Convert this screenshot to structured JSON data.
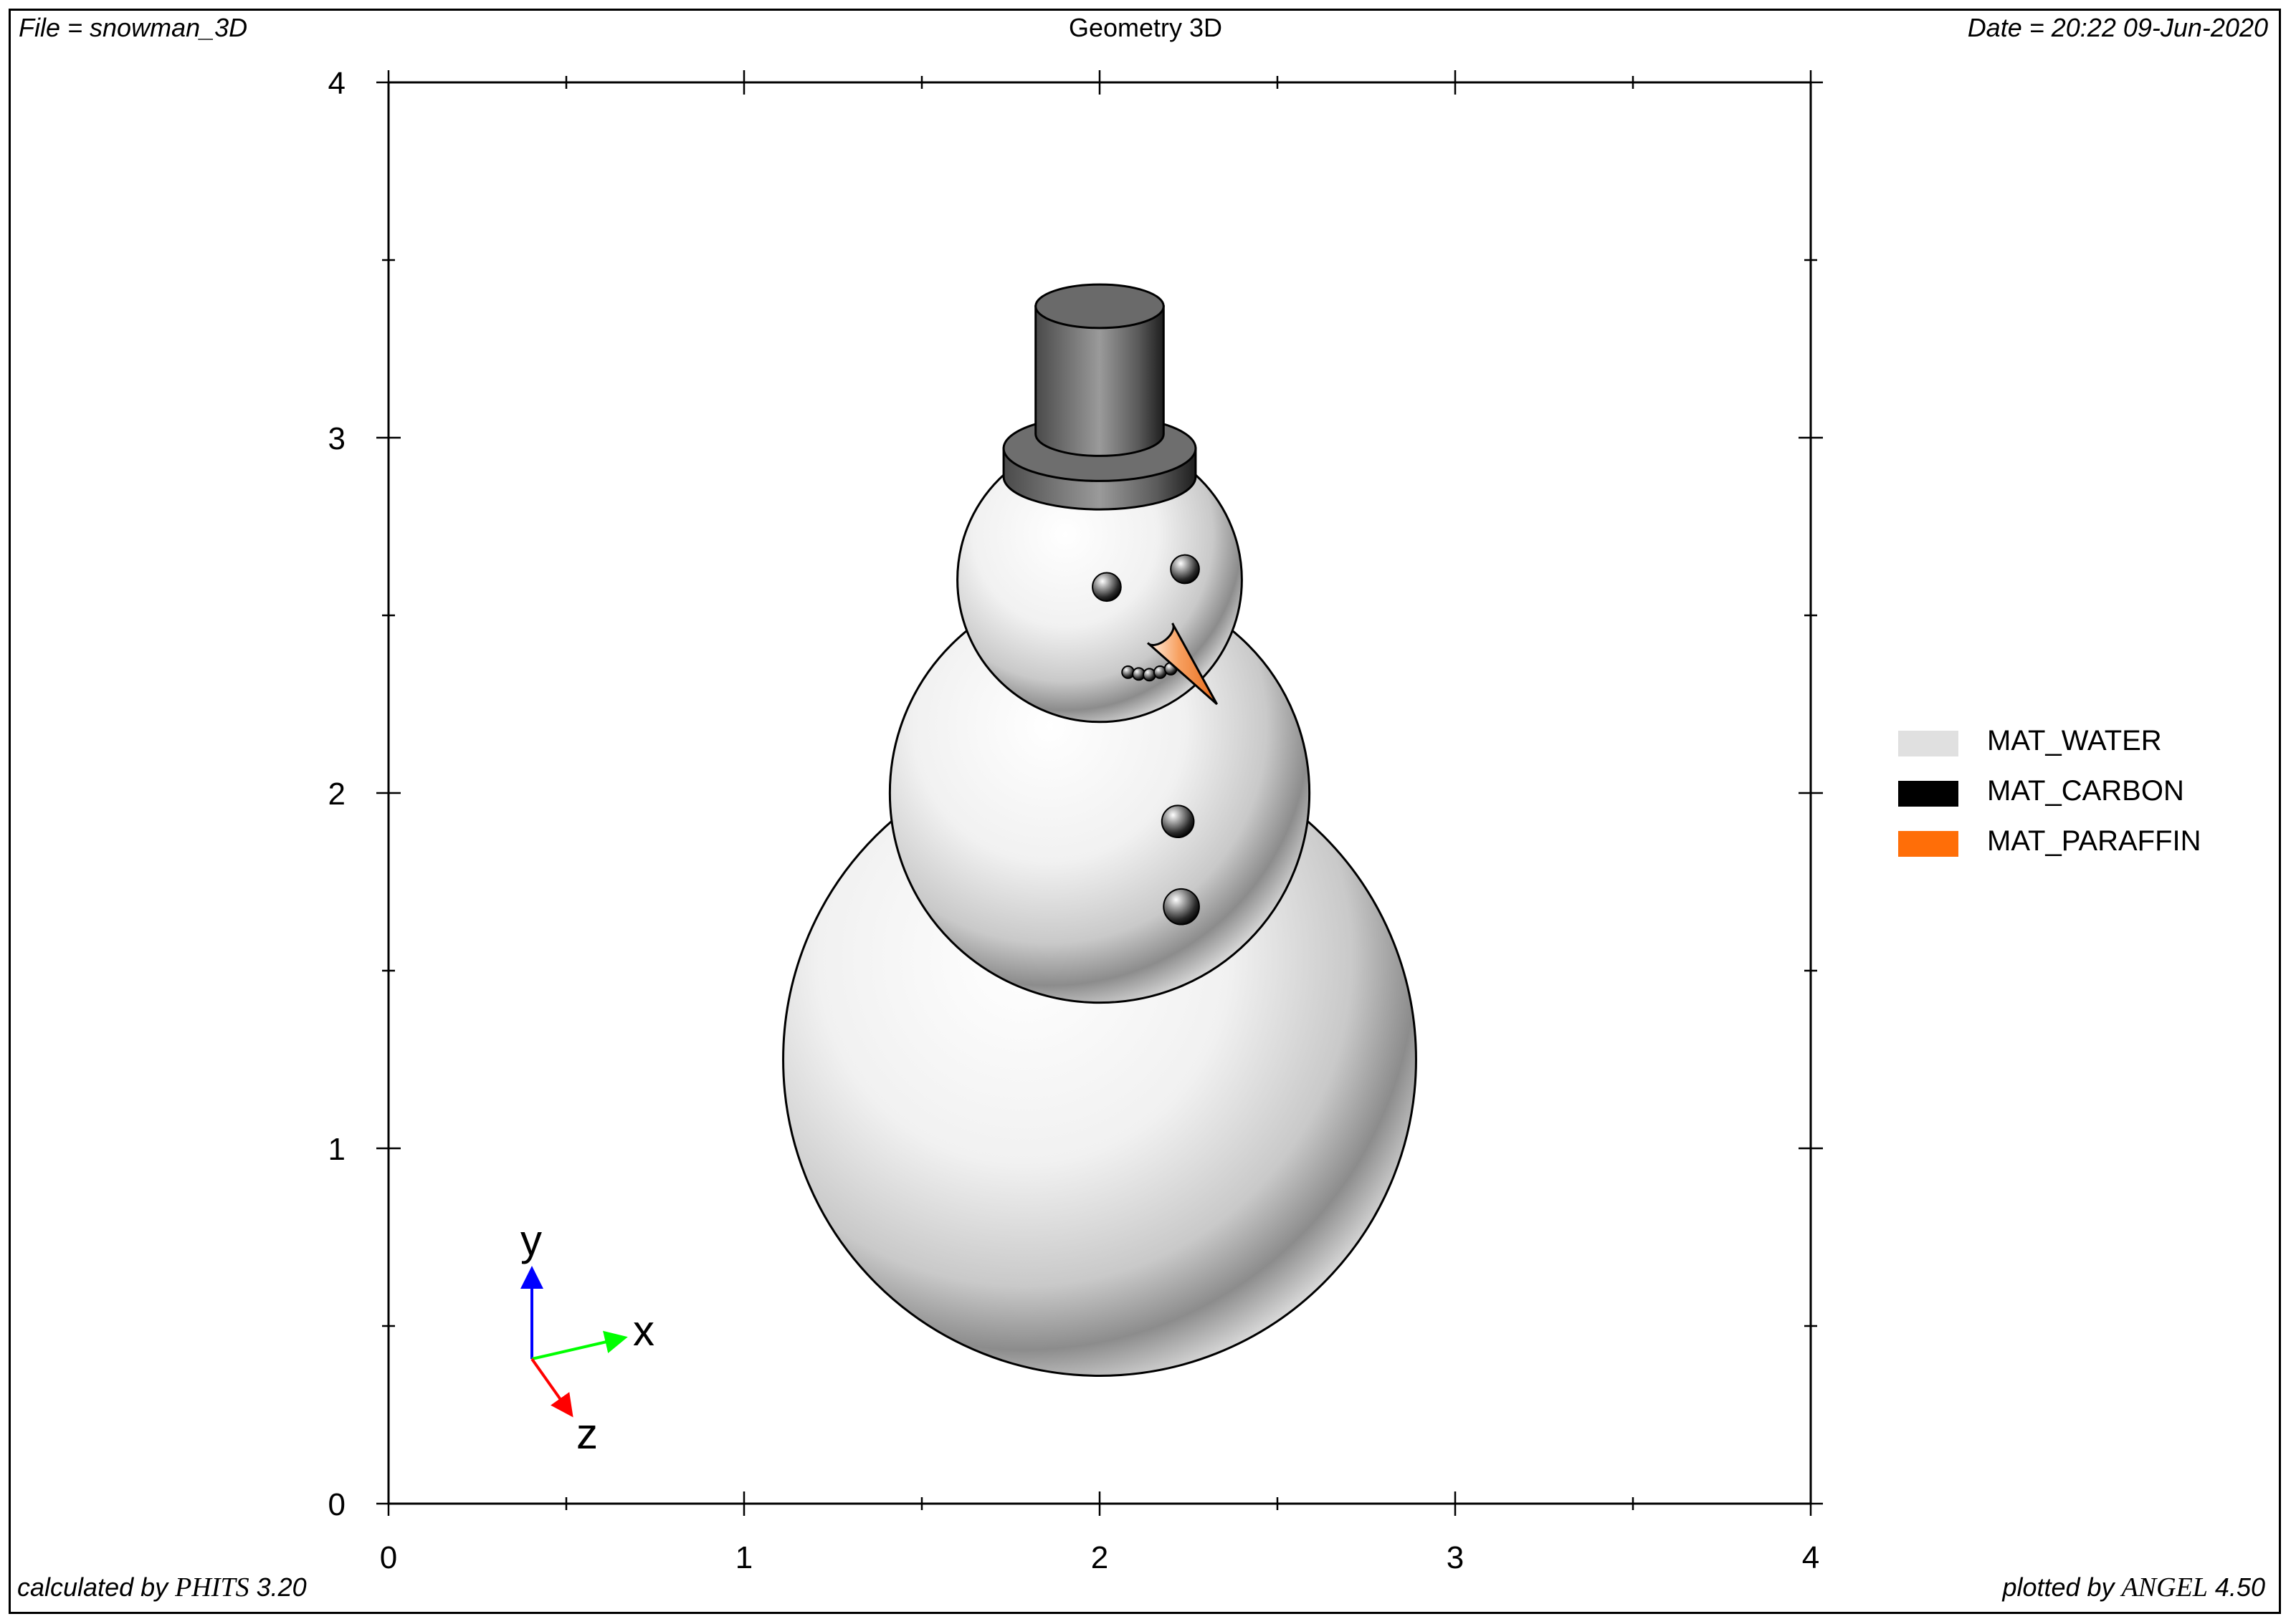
{
  "header": {
    "file_label": "File = snowman_3D",
    "title": "Geometry 3D",
    "date_label": "Date = 20:22 09-Jun-2020"
  },
  "footer": {
    "calculated_prefix": "calculated by ",
    "calculated_program": "PHITS",
    "calculated_version": " 3.20",
    "plotted_prefix": "plotted by ",
    "plotted_program": "ANGEL",
    "plotted_version": " 4.50"
  },
  "axes_indicator": {
    "y_label": "y",
    "x_label": "x",
    "z_label": "z",
    "colors": {
      "x": "#00ff00",
      "y": "#0000ff",
      "z": "#ff0000"
    }
  },
  "legend": [
    {
      "label": "MAT_WATER",
      "color": "#e0e0e0"
    },
    {
      "label": "MAT_CARBON",
      "color": "#000000"
    },
    {
      "label": "MAT_PARAFFIN",
      "color": "#ff6e08"
    }
  ],
  "chart_data": {
    "type": "geometry-3d",
    "title": "Geometry 3D",
    "xlim": [
      0,
      4
    ],
    "ylim": [
      0,
      4
    ],
    "x_ticks": [
      "0",
      "1",
      "2",
      "3",
      "4"
    ],
    "y_ticks": [
      "0",
      "1",
      "2",
      "3",
      "4"
    ],
    "minor_ticks_per_unit": 2,
    "grid": false,
    "legend_position": "right",
    "objects": [
      {
        "name": "bottom-body",
        "shape": "sphere",
        "material": "MAT_WATER",
        "cx": 2.0,
        "cy": 1.25,
        "r": 0.89
      },
      {
        "name": "middle-body",
        "shape": "sphere",
        "material": "MAT_WATER",
        "cx": 2.0,
        "cy": 2.0,
        "r": 0.59
      },
      {
        "name": "head",
        "shape": "sphere",
        "material": "MAT_WATER",
        "cx": 2.0,
        "cy": 2.6,
        "r": 0.4
      },
      {
        "name": "hat-brim",
        "shape": "cylinder",
        "material": "MAT_CARBON",
        "cx": 2.0,
        "cy": 2.93,
        "rx": 0.27,
        "height": 0.08
      },
      {
        "name": "hat-crown",
        "shape": "cylinder",
        "material": "MAT_CARBON",
        "cx": 2.0,
        "cy": 3.19,
        "rx": 0.18,
        "height": 0.36
      },
      {
        "name": "left-eye",
        "shape": "sphere",
        "material": "MAT_CARBON",
        "cx": 2.02,
        "cy": 2.58,
        "r": 0.04
      },
      {
        "name": "right-eye",
        "shape": "sphere",
        "material": "MAT_CARBON",
        "cx": 2.24,
        "cy": 2.63,
        "r": 0.04
      },
      {
        "name": "upper-button",
        "shape": "sphere",
        "material": "MAT_CARBON",
        "cx": 2.22,
        "cy": 1.92,
        "r": 0.045
      },
      {
        "name": "lower-button",
        "shape": "sphere",
        "material": "MAT_CARBON",
        "cx": 2.23,
        "cy": 1.68,
        "r": 0.05
      },
      {
        "name": "nose",
        "shape": "cone",
        "material": "MAT_PARAFFIN",
        "base_x": 2.17,
        "base_y": 2.45,
        "tip_x": 2.33,
        "tip_y": 2.25
      },
      {
        "name": "mouth",
        "shape": "sphere-chain",
        "material": "MAT_CARBON",
        "points": [
          [
            2.08,
            2.34
          ],
          [
            2.11,
            2.335
          ],
          [
            2.14,
            2.333
          ],
          [
            2.17,
            2.34
          ],
          [
            2.2,
            2.35
          ]
        ],
        "r": 0.017
      }
    ]
  }
}
